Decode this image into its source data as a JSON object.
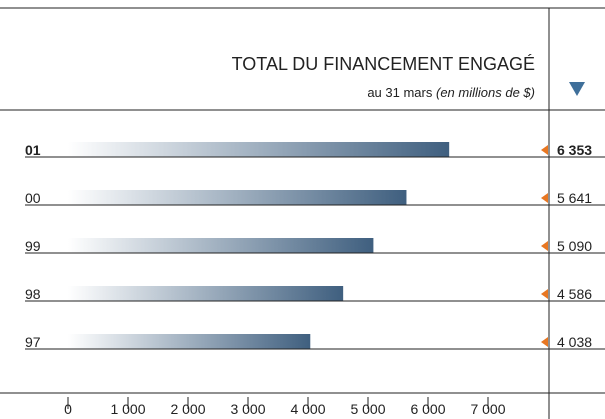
{
  "chart_data": {
    "type": "bar",
    "orientation": "horizontal",
    "title": "TOTAL DU FINANCEMENT ENGAGÉ",
    "subtitle": "au 31 mars",
    "subtitle_note": "(en millions de $)",
    "categories": [
      "01",
      "00",
      "99",
      "98",
      "97"
    ],
    "values": [
      6353,
      5641,
      5090,
      4586,
      4038
    ],
    "value_labels": [
      "6 353",
      "5 641",
      "5 090",
      "4 586",
      "4 038"
    ],
    "color": "#3f5f7f",
    "marker_color": "#e87722",
    "xlim": [
      0,
      7000
    ],
    "xticks": [
      0,
      {
        "value": 1000,
        "label": "1 000"
      },
      {
        "value": 2000,
        "label": "2 000"
      },
      {
        "value": 3000,
        "label": "3 000"
      },
      {
        "value": 4000,
        "label": "4 000"
      },
      {
        "value": 5000,
        "label": "5 000"
      },
      {
        "value": 6000,
        "label": "6 000"
      },
      {
        "value": 7000,
        "label": "7 000"
      }
    ]
  }
}
